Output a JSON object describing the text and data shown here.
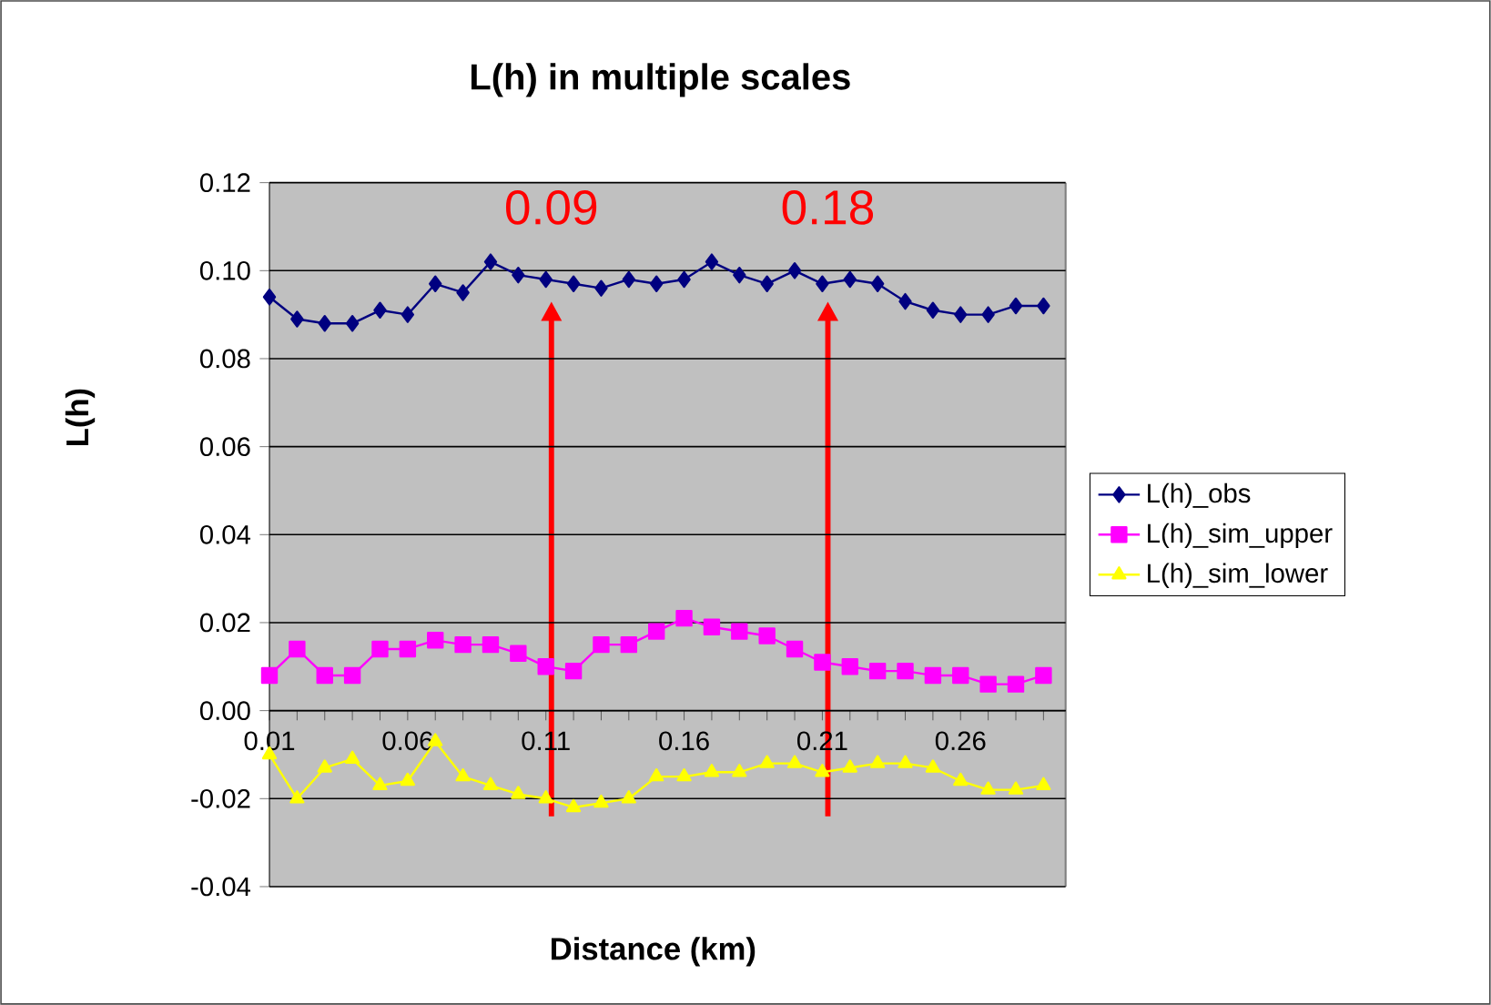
{
  "chart_data": {
    "type": "line",
    "title": "L(h) in multiple scales",
    "xlabel": "Distance (km)",
    "ylabel": "L(h)",
    "categories": [
      "0.01",
      null,
      null,
      null,
      null,
      "0.06",
      null,
      null,
      null,
      null,
      "0.11",
      null,
      null,
      null,
      null,
      "0.16",
      null,
      null,
      null,
      null,
      "0.21",
      null,
      null,
      null,
      null,
      "0.26",
      null,
      null,
      null
    ],
    "series": [
      {
        "name": "L(h)_obs",
        "color": "#000080",
        "marker": "diamond",
        "values": [
          0.094,
          0.089,
          0.088,
          0.088,
          0.091,
          0.09,
          0.097,
          0.095,
          0.102,
          0.099,
          0.098,
          0.097,
          0.096,
          0.098,
          0.097,
          0.098,
          0.102,
          0.099,
          0.097,
          0.1,
          0.097,
          0.098,
          0.097,
          0.093,
          0.091,
          0.09,
          0.09,
          0.092,
          0.092
        ]
      },
      {
        "name": "L(h)_sim_upper",
        "color": "#ff00ff",
        "marker": "square",
        "values": [
          0.008,
          0.014,
          0.008,
          0.008,
          0.014,
          0.014,
          0.016,
          0.015,
          0.015,
          0.013,
          0.01,
          0.009,
          0.015,
          0.015,
          0.018,
          0.021,
          0.019,
          0.018,
          0.017,
          0.014,
          0.011,
          0.01,
          0.009,
          0.009,
          0.008,
          0.008,
          0.006,
          0.006,
          0.008
        ]
      },
      {
        "name": "L(h)_sim_lower",
        "color": "#ffff00",
        "marker": "triangle",
        "values": [
          -0.01,
          -0.02,
          -0.013,
          -0.011,
          -0.017,
          -0.016,
          -0.007,
          -0.015,
          -0.017,
          -0.019,
          -0.02,
          -0.022,
          -0.021,
          -0.02,
          -0.015,
          -0.015,
          -0.014,
          -0.014,
          -0.012,
          -0.012,
          -0.014,
          -0.013,
          -0.012,
          -0.012,
          -0.013,
          -0.016,
          -0.018,
          -0.018,
          -0.017
        ]
      }
    ],
    "ylim": [
      -0.04,
      0.12
    ],
    "yticks": [
      {
        "value": -0.04,
        "label": "-0.04"
      },
      {
        "value": -0.02,
        "label": "-0.02"
      },
      {
        "value": 0,
        "label": "0.00"
      },
      {
        "value": 0.02,
        "label": "0.02"
      },
      {
        "value": 0.04,
        "label": "0.04"
      },
      {
        "value": 0.06,
        "label": "0.06"
      },
      {
        "value": 0.08,
        "label": "0.08"
      },
      {
        "value": 0.1,
        "label": "0.10"
      },
      {
        "value": 0.12,
        "label": "0.12"
      }
    ],
    "annotations": [
      "0.09",
      "0.18"
    ],
    "grid": "y",
    "legend": "right",
    "line_style": "solid"
  }
}
